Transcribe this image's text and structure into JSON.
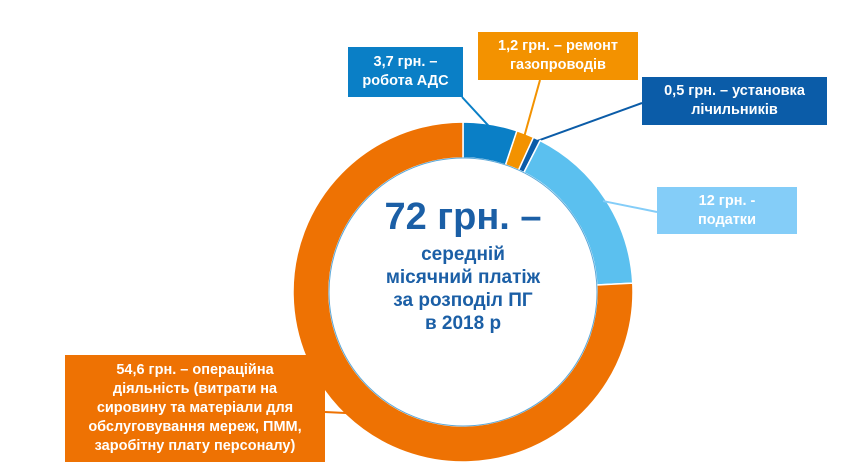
{
  "chart_data": {
    "type": "pie",
    "donut": true,
    "start": "top, clockwise",
    "center_title": "72 грн. –",
    "center_subtitle": [
      "середній",
      "місячний платіж",
      "за розподіл ПГ",
      "в 2018 р"
    ],
    "total": 72,
    "slices": [
      {
        "value": 3.7,
        "color": "#0a7fc6",
        "label": [
          "3,7 грн. –",
          "робота АДС"
        ]
      },
      {
        "value": 1.2,
        "color": "#f39200",
        "label": [
          "1,2 грн. – ремонт",
          "газопроводів"
        ]
      },
      {
        "value": 0.5,
        "color": "#0b5ca8",
        "label": [
          "0,5 грн. – установка",
          "лічильників"
        ]
      },
      {
        "value": 12,
        "color": "#5bc0ef",
        "label_color": "#84cdf8",
        "label": [
          "12 грн. -",
          "податки"
        ]
      },
      {
        "value": 54.6,
        "color": "#ee7203",
        "label": [
          "54,6 грн. – операційна",
          "діяльність (витрати на",
          "сировину та матеріали для",
          "обслуговування мереж, ПММ,",
          "заробітну плату персоналу)"
        ]
      }
    ]
  }
}
